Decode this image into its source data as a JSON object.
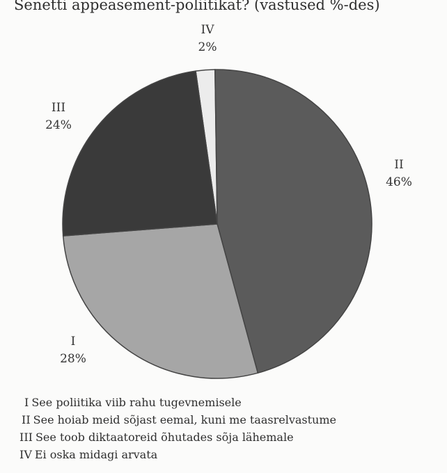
{
  "chart_data": {
    "type": "pie",
    "title": "Senetti appeasement-poliitikat? (vastused %-des)",
    "slices": [
      {
        "label": "IV",
        "value": 2,
        "pct_label": "2%",
        "color": "#ececec",
        "legend": "Ei oska midagi arvata"
      },
      {
        "label": "II",
        "value": 46,
        "pct_label": "46%",
        "color": "#5b5b5b",
        "legend": "See hoiab meid sõjast eemal, kuni me taasrelvastume"
      },
      {
        "label": "I",
        "value": 28,
        "pct_label": "28%",
        "color": "#a6a6a6",
        "legend": "See poliitika viib rahu tugevnemisele"
      },
      {
        "label": "III",
        "value": 24,
        "pct_label": "24%",
        "color": "#3a3a3a",
        "legend": "See toob diktaatoreid õhutades sõja lähemale"
      }
    ],
    "legend_order": [
      "I",
      "II",
      "III",
      "IV"
    ],
    "legend_placement": "bottom"
  }
}
